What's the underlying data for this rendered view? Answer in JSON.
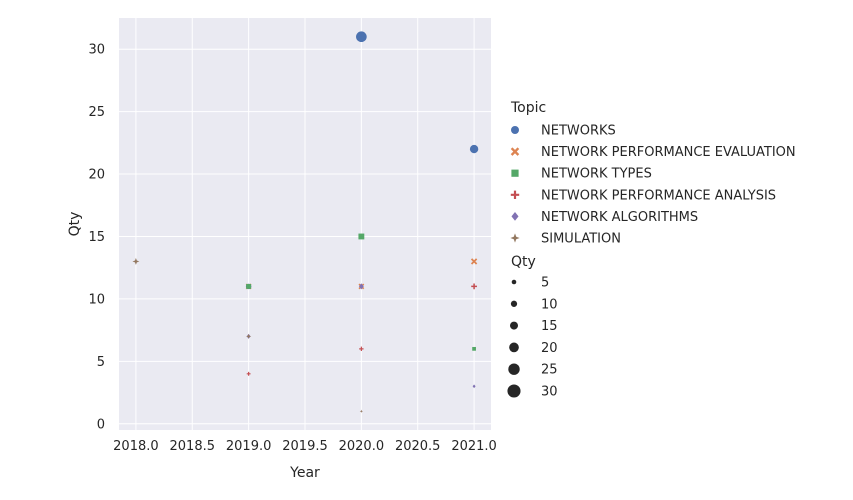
{
  "chart_data": {
    "type": "scatter",
    "xlabel": "Year",
    "ylabel": "Qty",
    "xlim": [
      2017.85,
      2021.15
    ],
    "ylim": [
      -0.5,
      32.5
    ],
    "xticks": [
      "2018.0",
      "2018.5",
      "2019.0",
      "2019.5",
      "2020.0",
      "2020.5",
      "2021.0"
    ],
    "yticks": [
      "0",
      "5",
      "10",
      "15",
      "20",
      "25",
      "30"
    ],
    "grid": true,
    "legend_position": "right",
    "hue_title": "Topic",
    "size_title": "Qty",
    "size_legend": [
      "5",
      "10",
      "15",
      "20",
      "25",
      "30"
    ],
    "series": [
      {
        "name": "NETWORKS",
        "color": "#4c72b0",
        "marker": "circle",
        "points": [
          {
            "x": 2019,
            "y": 11
          },
          {
            "x": 2020,
            "y": 31
          },
          {
            "x": 2021,
            "y": 22
          }
        ]
      },
      {
        "name": "NETWORK PERFORMANCE EVALUATION",
        "color": "#dd8452",
        "marker": "x",
        "points": [
          {
            "x": 2019,
            "y": 11
          },
          {
            "x": 2020,
            "y": 11
          },
          {
            "x": 2021,
            "y": 13
          }
        ]
      },
      {
        "name": "NETWORK TYPES",
        "color": "#55a868",
        "marker": "square",
        "points": [
          {
            "x": 2019,
            "y": 11
          },
          {
            "x": 2020,
            "y": 15
          },
          {
            "x": 2021,
            "y": 6
          }
        ]
      },
      {
        "name": "NETWORK PERFORMANCE ANALYSIS",
        "color": "#c44e52",
        "marker": "plus",
        "points": [
          {
            "x": 2019,
            "y": 4
          },
          {
            "x": 2020,
            "y": 6
          },
          {
            "x": 2021,
            "y": 11
          }
        ]
      },
      {
        "name": "NETWORK ALGORITHMS",
        "color": "#8172b3",
        "marker": "diamond",
        "points": [
          {
            "x": 2019,
            "y": 7
          },
          {
            "x": 2020,
            "y": 11
          },
          {
            "x": 2021,
            "y": 3
          }
        ]
      },
      {
        "name": "SIMULATION",
        "color": "#937860",
        "marker": "star",
        "points": [
          {
            "x": 2018,
            "y": 13
          },
          {
            "x": 2019,
            "y": 7
          },
          {
            "x": 2020,
            "y": 1
          }
        ]
      }
    ]
  }
}
